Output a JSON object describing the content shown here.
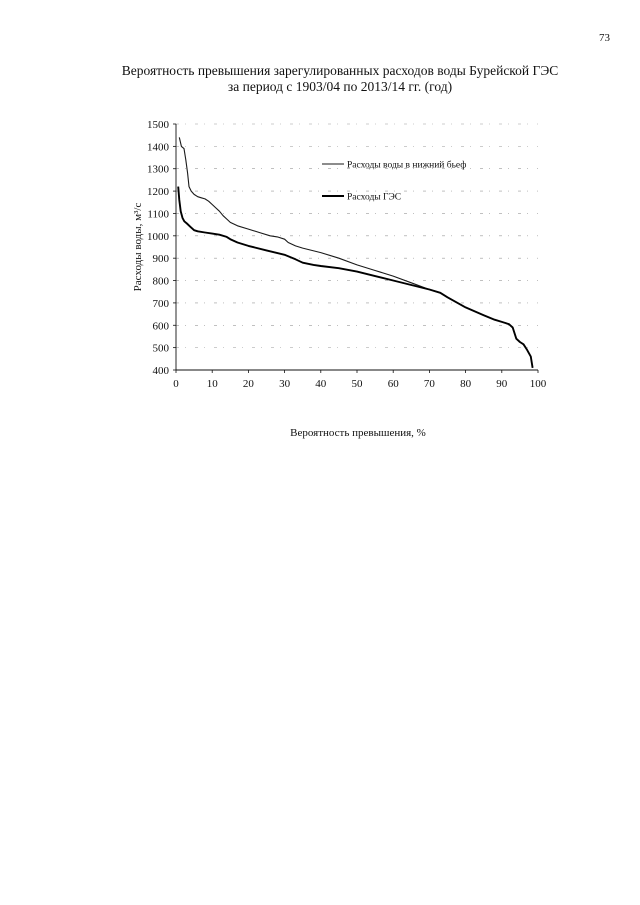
{
  "page": {
    "number": "73"
  },
  "chart_data": {
    "type": "line",
    "title_line1": "Вероятность превышения зарегулированных расходов воды Бурейской ГЭС",
    "title_line2": "за период с 1903/04 по 2013/14 гг. (год)",
    "xlabel": "Вероятность превышения, %",
    "ylabel": "Расходы воды, м³/с",
    "xlim": [
      0,
      100
    ],
    "ylim": [
      400,
      1500
    ],
    "x_ticks": [
      "0",
      "10",
      "20",
      "30",
      "40",
      "50",
      "60",
      "70",
      "80",
      "90",
      "100"
    ],
    "y_ticks": [
      "400",
      "500",
      "600",
      "700",
      "800",
      "900",
      "1000",
      "1100",
      "1200",
      "1300",
      "1400",
      "1500"
    ],
    "grid": true,
    "legend_position": "right, upper",
    "series": [
      {
        "name": "Расходы воды в нижний бьеф",
        "color": "#1a1a1a",
        "line_width": "thin",
        "x": [
          0.9,
          1.5,
          2.2,
          2.7,
          3.2,
          3.6,
          4.2,
          5,
          6,
          7,
          8,
          9,
          10,
          11,
          12,
          13,
          14,
          15,
          17,
          20,
          23,
          26,
          28,
          30,
          31,
          33,
          35,
          40,
          45,
          50,
          55,
          60,
          65,
          70,
          73,
          75,
          80,
          85,
          88,
          90,
          91,
          92,
          93,
          94,
          95,
          96,
          97,
          98,
          98.5
        ],
        "y": [
          1440,
          1400,
          1390,
          1340,
          1280,
          1220,
          1200,
          1185,
          1175,
          1170,
          1165,
          1155,
          1140,
          1125,
          1110,
          1090,
          1075,
          1060,
          1045,
          1030,
          1015,
          1000,
          995,
          985,
          970,
          955,
          945,
          925,
          900,
          870,
          845,
          820,
          790,
          760,
          745,
          725,
          680,
          645,
          625,
          615,
          610,
          605,
          590,
          540,
          525,
          515,
          490,
          460,
          410
        ]
      },
      {
        "name": "Расходы ГЭС",
        "color": "#000000",
        "line_width": "thick",
        "x": [
          0.6,
          0.9,
          1.3,
          1.8,
          2.3,
          3,
          4,
          5,
          6,
          8,
          10,
          12,
          14,
          15,
          17,
          20,
          25,
          30,
          33,
          35,
          38,
          40,
          45,
          50,
          55,
          60,
          65,
          70,
          73,
          75,
          80,
          85,
          88,
          90,
          91,
          92,
          93,
          94,
          95,
          96,
          97,
          98,
          98.5
        ],
        "y": [
          1220,
          1160,
          1110,
          1080,
          1065,
          1055,
          1040,
          1025,
          1020,
          1015,
          1010,
          1005,
          995,
          985,
          970,
          955,
          935,
          915,
          895,
          880,
          870,
          865,
          855,
          840,
          820,
          800,
          780,
          760,
          745,
          725,
          680,
          645,
          625,
          615,
          610,
          605,
          590,
          540,
          525,
          515,
          490,
          460,
          410
        ]
      }
    ]
  }
}
